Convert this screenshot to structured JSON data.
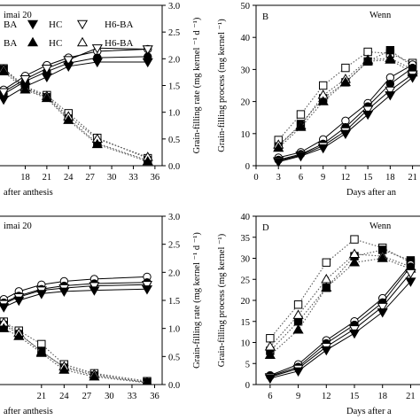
{
  "chart_data": [
    {
      "id": "A",
      "type": "line",
      "panel_label": "",
      "title": "imai 20",
      "xlabel": "after anthesis",
      "ylabel_right": "Grain-filling rate (mg kernel ⁻¹ d ⁻¹)",
      "xlim": [
        14.5,
        37
      ],
      "y2lim": [
        0,
        3.0
      ],
      "x_ticks": [
        "18",
        "21",
        "24",
        "27",
        "30",
        "33",
        "36"
      ],
      "y2_ticks": [
        "0.0",
        "0.5",
        "1.0",
        "1.5",
        "2.0",
        "2.5",
        "3.0"
      ],
      "legend_rows": [
        [
          "BA",
          "HC",
          "H6-BA"
        ],
        [
          "BA",
          "HC",
          "H6-BA"
        ]
      ],
      "x": [
        15,
        18,
        21,
        24,
        28,
        35
      ],
      "series_process": [
        {
          "marker": "open-circle",
          "values": [
            1.42,
            1.68,
            1.88,
            2.02,
            2.14,
            2.18
          ]
        },
        {
          "marker": "filled-circle",
          "values": [
            1.34,
            1.58,
            1.76,
            1.92,
            2.02,
            2.04
          ]
        },
        {
          "marker": "open-triangle-down",
          "values": [
            1.38,
            1.62,
            1.82,
            1.98,
            2.2,
            2.18
          ]
        },
        {
          "marker": "filled-triangle-down",
          "values": [
            1.24,
            1.48,
            1.66,
            1.86,
            1.94,
            1.94
          ]
        }
      ],
      "series_rate": [
        {
          "marker": "open-square",
          "values": [
            1.82,
            1.48,
            1.32,
            0.98,
            0.52,
            0.14
          ]
        },
        {
          "marker": "filled-square",
          "values": [
            1.8,
            1.44,
            1.28,
            0.88,
            0.42,
            0.1
          ]
        },
        {
          "marker": "open-triangle",
          "values": [
            1.8,
            1.46,
            1.3,
            0.92,
            0.5,
            0.16
          ]
        },
        {
          "marker": "filled-triangle",
          "values": [
            1.76,
            1.42,
            1.26,
            0.85,
            0.4,
            0.08
          ]
        }
      ]
    },
    {
      "id": "B",
      "type": "line",
      "panel_label": "B",
      "title": "Wenn",
      "xlabel": "Days after an",
      "ylabel": "Grain-filling process (mg kernel ⁻¹)",
      "xlim": [
        0,
        22
      ],
      "ylim": [
        0,
        50
      ],
      "x_ticks": [
        "0",
        "3",
        "6",
        "9",
        "12",
        "15",
        "18",
        "21"
      ],
      "y_ticks": [
        "0",
        "10",
        "20",
        "30",
        "40",
        "50"
      ],
      "x": [
        3,
        6,
        9,
        12,
        15,
        18,
        21
      ],
      "series_process": [
        {
          "marker": "open-circle",
          "values": [
            2.5,
            4.2,
            8.2,
            14,
            19.5,
            27.5,
            31.5
          ]
        },
        {
          "marker": "filled-circle",
          "values": [
            1.8,
            3.6,
            6.8,
            12,
            18.5,
            25.5,
            30.5
          ]
        },
        {
          "marker": "open-triangle-down",
          "values": [
            1.5,
            3.3,
            6.2,
            10.8,
            17.5,
            23.5,
            28.5
          ]
        },
        {
          "marker": "filled-triangle-down",
          "values": [
            1.2,
            3.0,
            5.5,
            10,
            16,
            22,
            27.5
          ]
        }
      ],
      "series_rate": [
        {
          "marker": "open-square",
          "values": [
            8,
            16,
            25,
            30.5,
            35.5,
            35,
            32
          ]
        },
        {
          "marker": "filled-square",
          "values": [
            6,
            13,
            21,
            26,
            32.5,
            36,
            31
          ]
        },
        {
          "marker": "open-triangle",
          "values": [
            6.5,
            12.5,
            22,
            27,
            33,
            33.5,
            30
          ]
        },
        {
          "marker": "filled-triangle",
          "values": [
            5.5,
            12,
            20,
            26,
            32.5,
            33,
            29
          ]
        }
      ]
    },
    {
      "id": "C",
      "type": "line",
      "panel_label": "",
      "title": "imai 20",
      "xlabel": "after anthesis",
      "ylabel_right": "Grain-filling rate (mg kernel ⁻¹ d ⁻¹)",
      "xlim": [
        15.5,
        37
      ],
      "y2lim": [
        0,
        3.0
      ],
      "x_ticks": [
        "21",
        "24",
        "27",
        "30",
        "33",
        "36"
      ],
      "y2_ticks": [
        "0.0",
        "0.5",
        "1.0",
        "1.5",
        "2.0",
        "2.5",
        "3.0"
      ],
      "x": [
        16,
        18,
        21,
        24,
        28,
        35
      ],
      "series_process": [
        {
          "marker": "open-circle",
          "values": [
            1.52,
            1.66,
            1.78,
            1.84,
            1.88,
            1.92
          ]
        },
        {
          "marker": "filled-circle",
          "values": [
            1.46,
            1.58,
            1.7,
            1.76,
            1.8,
            1.82
          ]
        },
        {
          "marker": "open-triangle-down",
          "values": [
            1.44,
            1.56,
            1.68,
            1.72,
            1.76,
            1.78
          ]
        },
        {
          "marker": "filled-triangle-down",
          "values": [
            1.38,
            1.5,
            1.62,
            1.66,
            1.68,
            1.7
          ]
        }
      ],
      "series_rate": [
        {
          "marker": "open-square",
          "values": [
            1.12,
            0.96,
            0.72,
            0.36,
            0.2,
            0.06
          ]
        },
        {
          "marker": "filled-square",
          "values": [
            1.06,
            0.9,
            0.6,
            0.3,
            0.16,
            0.04
          ]
        },
        {
          "marker": "open-triangle",
          "values": [
            1.1,
            0.92,
            0.58,
            0.32,
            0.18,
            0.04
          ]
        },
        {
          "marker": "filled-triangle",
          "values": [
            1.0,
            0.86,
            0.56,
            0.26,
            0.14,
            0.03
          ]
        }
      ]
    },
    {
      "id": "D",
      "type": "line",
      "panel_label": "D",
      "title": "Wenn",
      "xlabel": "Days after a",
      "ylabel": "Grain-filling process (mg kernel ⁻¹)",
      "xlim": [
        4.5,
        22
      ],
      "ylim": [
        0,
        40
      ],
      "x_ticks": [
        "6",
        "9",
        "12",
        "15",
        "18",
        "21"
      ],
      "y_ticks": [
        "0",
        "5",
        "10",
        "15",
        "20",
        "25",
        "30",
        "35",
        "40"
      ],
      "x": [
        6,
        9,
        12,
        15,
        18,
        21
      ],
      "series_process": [
        {
          "marker": "open-circle",
          "values": [
            2.2,
            4.8,
            10.5,
            15,
            20.5,
            28.5
          ]
        },
        {
          "marker": "filled-circle",
          "values": [
            2.0,
            4.2,
            9.8,
            14.2,
            19.5,
            28
          ]
        },
        {
          "marker": "open-triangle-down",
          "values": [
            1.8,
            3.8,
            9.0,
            13.2,
            18.5,
            26.5
          ]
        },
        {
          "marker": "filled-triangle-down",
          "values": [
            1.5,
            3.2,
            8.2,
            12.2,
            17.2,
            24.5
          ]
        }
      ],
      "series_rate": [
        {
          "marker": "open-square",
          "values": [
            11,
            19,
            29,
            34.5,
            32.5,
            29
          ]
        },
        {
          "marker": "filled-square",
          "values": [
            8,
            15,
            23,
            30.5,
            32,
            29.5
          ]
        },
        {
          "marker": "open-triangle",
          "values": [
            9,
            16.5,
            25,
            31,
            30.5,
            28
          ]
        },
        {
          "marker": "filled-triangle",
          "values": [
            7,
            13,
            23,
            29,
            30,
            27.5
          ]
        }
      ]
    }
  ]
}
